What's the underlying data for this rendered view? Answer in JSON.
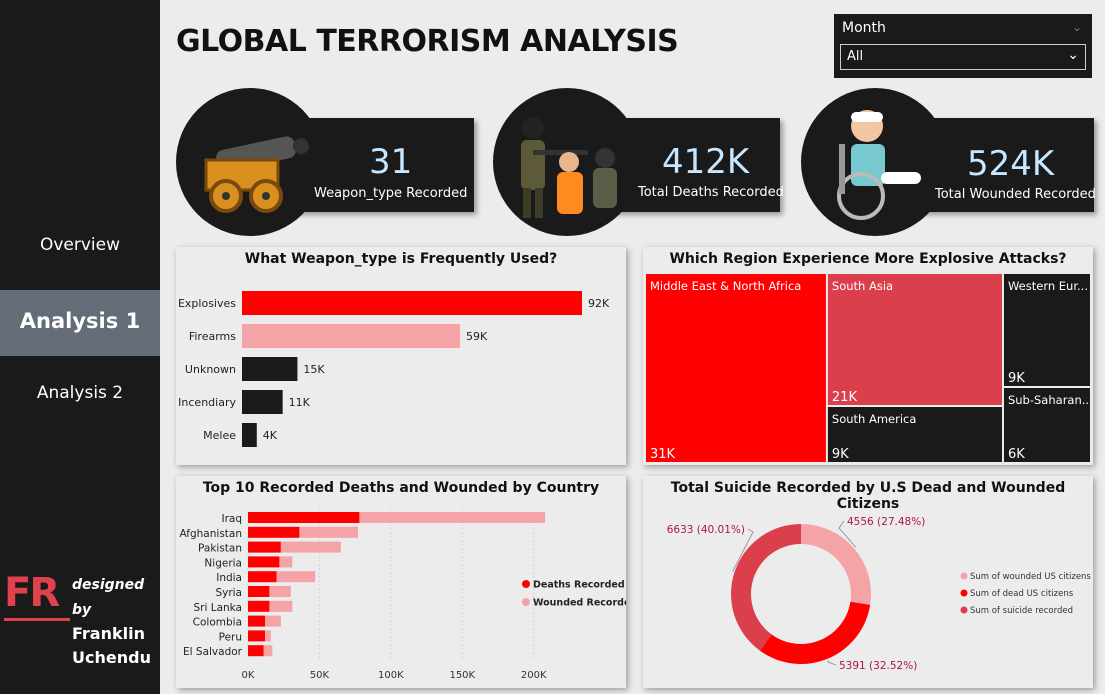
{
  "title": "GLOBAL TERRORISM  ANALYSIS",
  "nav": [
    {
      "label": "Overview"
    },
    {
      "label": "Analysis 1"
    },
    {
      "label": "Analysis 2"
    }
  ],
  "brand": {
    "logo": "FR",
    "designed_by": "designed by",
    "name1": "Franklin",
    "name2": "Uchendu"
  },
  "slicer": {
    "label": "Month",
    "value": "All"
  },
  "kpis": [
    {
      "value": "31",
      "label": "Weapon_type Recorded",
      "icon": "cannon-icon"
    },
    {
      "value": "412K",
      "label": "Total Deaths Recorded",
      "icon": "hostage-icon"
    },
    {
      "value": "524K",
      "label": "Total Wounded Recorded",
      "icon": "wheelchair-patient-icon"
    }
  ],
  "colors": {
    "red": "#ff0000",
    "pink": "#f4a3a6",
    "dark": "#1a1a1a",
    "crimson": "#dc3f4c",
    "accent_text": "#c6e7ff"
  },
  "chart_data": [
    {
      "type": "bar",
      "orientation": "horizontal",
      "title": "What Weapon_type is Frequently Used?",
      "categories": [
        "Explosives",
        "Firearms",
        "Unknown",
        "Incendiary",
        "Melee"
      ],
      "values": [
        92,
        59,
        15,
        11,
        4
      ],
      "labels": [
        "92K",
        "59K",
        "15K",
        "11K",
        "4K"
      ],
      "colors": [
        "#ff0000",
        "#f4a3a6",
        "#1a1a1a",
        "#1a1a1a",
        "#1a1a1a"
      ]
    },
    {
      "type": "treemap",
      "title": "Which Region Experience More Explosive Attacks?",
      "items": [
        {
          "name": "Middle East & North Africa",
          "value_label": "31K",
          "value": 31,
          "color": "#ff0000"
        },
        {
          "name": "South Asia",
          "value_label": "21K",
          "value": 21,
          "color": "#dc3f4c"
        },
        {
          "name": "South America",
          "value_label": "9K",
          "value": 9,
          "color": "#1a1a1a"
        },
        {
          "name": "Western Eur...",
          "value_label": "9K",
          "value": 9,
          "color": "#1a1a1a"
        },
        {
          "name": "Sub-Saharan...",
          "value_label": "6K",
          "value": 6,
          "color": "#1a1a1a"
        }
      ]
    },
    {
      "type": "bar",
      "orientation": "horizontal",
      "stacked": true,
      "title": "Top 10 Recorded Deaths and Wounded by Country",
      "categories": [
        "Iraq",
        "Afghanistan",
        "Pakistan",
        "Nigeria",
        "India",
        "Syria",
        "Sri Lanka",
        "Colombia",
        "Peru",
        "El Salvador"
      ],
      "series": [
        {
          "name": "Deaths Recorded",
          "color": "#ff0000",
          "values": [
            78000,
            36000,
            23000,
            22000,
            20000,
            15000,
            15000,
            12000,
            12000,
            11000
          ]
        },
        {
          "name": "Wounded Recorded",
          "color": "#f4a3a6",
          "values": [
            130000,
            41000,
            42000,
            9000,
            27000,
            15000,
            16000,
            11000,
            4000,
            6000
          ]
        }
      ],
      "xticks": [
        "0K",
        "50K",
        "100K",
        "150K",
        "200K"
      ],
      "xlim": [
        0,
        210000
      ],
      "legend_position": "right"
    },
    {
      "type": "pie",
      "variant": "donut",
      "title": "Total Suicide Recorded by U.S Dead and Wounded Citizens",
      "slices": [
        {
          "name": "Sum of wounded US citizens",
          "value": 4556,
          "label": "4556 (27.48%)",
          "color": "#f4a3a6"
        },
        {
          "name": "Sum of dead US citizens",
          "value": 5391,
          "label": "5391 (32.52%)",
          "color": "#ff0000"
        },
        {
          "name": "Sum of suicide recorded",
          "value": 6633,
          "label": "6633 (40.01%)",
          "color": "#dc3f4c"
        }
      ],
      "legend_position": "right"
    }
  ]
}
